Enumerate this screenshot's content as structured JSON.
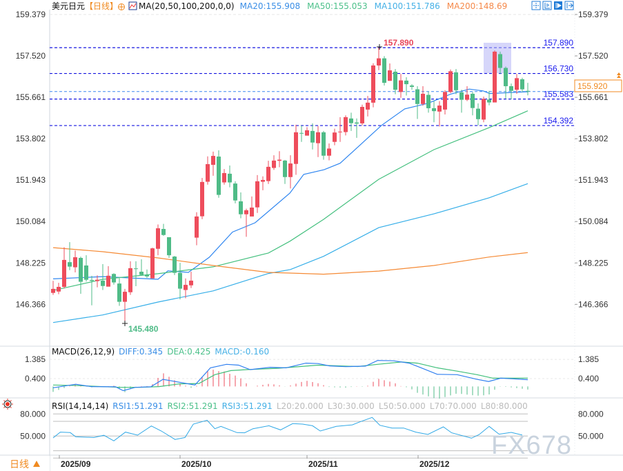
{
  "header": {
    "symbol": "美元日元",
    "period": "【日线】",
    "ma_params": "MA(20,50,100,200,0,0)",
    "ma20": "MA20:155.908",
    "ma50": "MA50:155.053",
    "ma100": "MA100:151.786",
    "ma200": "MA200:148.69",
    "toolbar_icons": [
      "crosshair-icon",
      "fit-range-icon",
      "play-icon",
      "exit-icon"
    ]
  },
  "colors": {
    "up": "#ee4d5c",
    "down": "#4fbb87",
    "ma20": "#2f86f0",
    "ma50": "#45c07f",
    "ma100": "#35aee8",
    "ma200": "#f58a35",
    "level_line": "#1515e0",
    "current_price": "#f08a20"
  },
  "price_axis": {
    "ticks": [
      "159.379",
      "157.520",
      "155.661",
      "153.802",
      "151.943",
      "150.084",
      "148.225",
      "146.366"
    ]
  },
  "levels": [
    {
      "value": "157.890"
    },
    {
      "value": "156.730"
    },
    {
      "value": "155.583"
    },
    {
      "value": "154.392"
    }
  ],
  "current_price": "155.920",
  "high_marker": "157.890",
  "low_marker": "145.480",
  "macd": {
    "title": "MACD(26,12,9)",
    "diff": "DIFF:0.345",
    "dea": "DEA:0.425",
    "macd": "MACD:-0.160",
    "ticks": [
      "1.385",
      "0.400"
    ]
  },
  "rsi": {
    "title": "RSI(14,14,14)",
    "rsi1": "RSI1:51.291",
    "rsi2": "RSI2:51.291",
    "rsi3": "RSI3:51.291",
    "l20": "L20:20.000",
    "l30": "L30:30.000",
    "l50": "L50:50.000",
    "l70": "L70:70.000",
    "l80": "L80:80.000",
    "ticks": [
      "80.000",
      "50.000"
    ]
  },
  "dates": [
    "2025/09",
    "2025/10",
    "2025/11",
    "2025/12"
  ],
  "period_button": "日线",
  "watermark": "FX678",
  "chart_data": {
    "type": "candlestick",
    "ohlc_order": [
      "open",
      "high",
      "low",
      "close"
    ],
    "ylim": [
      145.2,
      159.379
    ],
    "candles": [
      [
        146.88,
        147.42,
        146.79,
        147.06
      ],
      [
        146.94,
        147.33,
        146.82,
        147.15
      ],
      [
        147.15,
        148.93,
        147.08,
        148.36
      ],
      [
        148.26,
        149.16,
        147.9,
        148.06
      ],
      [
        148.03,
        148.78,
        147.8,
        148.48
      ],
      [
        148.45,
        148.51,
        146.84,
        147.38
      ],
      [
        148.11,
        148.57,
        147.39,
        147.47
      ],
      [
        147.46,
        147.65,
        146.32,
        147.42
      ],
      [
        147.41,
        147.67,
        147.13,
        147.47
      ],
      [
        147.43,
        148.17,
        147.01,
        147.19
      ],
      [
        147.16,
        148.08,
        147.16,
        147.65
      ],
      [
        147.73,
        147.76,
        147.25,
        147.35
      ],
      [
        147.3,
        147.54,
        146.3,
        146.48
      ],
      [
        146.48,
        147.06,
        145.48,
        146.93
      ],
      [
        146.91,
        148.3,
        146.79,
        147.99
      ],
      [
        147.98,
        148.3,
        147.18,
        147.96
      ],
      [
        147.83,
        148.39,
        147.65,
        147.69
      ],
      [
        147.68,
        147.93,
        147.55,
        147.62
      ],
      [
        147.53,
        148.91,
        147.53,
        148.88
      ],
      [
        148.86,
        149.95,
        148.57,
        149.78
      ],
      [
        149.75,
        149.98,
        149.44,
        149.48
      ],
      [
        149.38,
        149.38,
        148.45,
        148.57
      ],
      [
        148.51,
        148.54,
        147.68,
        147.78
      ],
      [
        147.78,
        148.23,
        146.59,
        147.07
      ],
      [
        147.01,
        147.53,
        146.64,
        147.24
      ],
      [
        147.22,
        147.83,
        147.1,
        147.43
      ],
      [
        149.36,
        150.5,
        149.02,
        150.31
      ],
      [
        150.32,
        152.04,
        150.19,
        151.86
      ],
      [
        151.87,
        153.01,
        151.74,
        152.66
      ],
      [
        152.63,
        153.22,
        152.14,
        153.03
      ],
      [
        153.0,
        153.28,
        151.15,
        151.28
      ],
      [
        151.84,
        152.44,
        151.74,
        152.26
      ],
      [
        152.23,
        152.6,
        151.62,
        151.84
      ],
      [
        151.79,
        151.89,
        150.9,
        151.03
      ],
      [
        150.99,
        151.39,
        150.23,
        150.41
      ],
      [
        150.41,
        150.66,
        149.4,
        150.59
      ],
      [
        150.31,
        151.21,
        150.31,
        150.71
      ],
      [
        150.72,
        152.17,
        150.47,
        151.89
      ],
      [
        151.87,
        152.11,
        151.49,
        151.95
      ],
      [
        151.9,
        152.81,
        151.77,
        152.54
      ],
      [
        152.49,
        153.06,
        152.4,
        152.82
      ],
      [
        152.81,
        153.24,
        152.52,
        152.86
      ],
      [
        152.82,
        152.85,
        151.77,
        152.08
      ],
      [
        152.08,
        153.06,
        151.57,
        152.69
      ],
      [
        152.67,
        154.43,
        152.18,
        154.09
      ],
      [
        154.06,
        154.39,
        153.66,
        154.04
      ],
      [
        153.94,
        154.32,
        153.94,
        154.18
      ],
      [
        154.15,
        154.49,
        153.32,
        153.63
      ],
      [
        153.6,
        154.37,
        152.98,
        154.09
      ],
      [
        154.09,
        154.15,
        152.86,
        153.04
      ],
      [
        153.04,
        153.59,
        152.83,
        153.36
      ],
      [
        153.66,
        154.25,
        153.51,
        154.08
      ],
      [
        154.1,
        154.77,
        153.66,
        154.12
      ],
      [
        154.1,
        154.85,
        153.95,
        154.77
      ],
      [
        154.71,
        154.97,
        154.15,
        154.5
      ],
      [
        154.53,
        154.71,
        153.84,
        154.48
      ],
      [
        154.49,
        155.33,
        154.4,
        155.23
      ],
      [
        155.11,
        155.72,
        154.8,
        155.42
      ],
      [
        155.42,
        157.19,
        155.21,
        157.09
      ],
      [
        157.09,
        157.89,
        156.88,
        157.41
      ],
      [
        157.41,
        157.51,
        156.19,
        156.31
      ],
      [
        156.4,
        157.18,
        156.4,
        156.87
      ],
      [
        156.81,
        156.93,
        155.8,
        156.0
      ],
      [
        155.9,
        156.71,
        155.64,
        156.42
      ],
      [
        156.41,
        156.56,
        155.74,
        156.25
      ],
      [
        156.19,
        156.25,
        156.0,
        156.13
      ],
      [
        156.02,
        156.16,
        154.69,
        155.36
      ],
      [
        155.36,
        156.16,
        155.28,
        155.82
      ],
      [
        155.77,
        155.92,
        154.97,
        155.17
      ],
      [
        155.17,
        155.49,
        154.54,
        155.04
      ],
      [
        155.02,
        155.49,
        154.35,
        155.29
      ],
      [
        155.11,
        155.98,
        154.89,
        155.9
      ],
      [
        155.9,
        156.91,
        155.85,
        156.83
      ],
      [
        156.78,
        156.93,
        155.8,
        155.98
      ],
      [
        155.88,
        156.0,
        154.97,
        155.55
      ],
      [
        155.55,
        156.16,
        155.49,
        155.78
      ],
      [
        155.82,
        155.9,
        154.85,
        155.18
      ],
      [
        155.15,
        155.39,
        154.4,
        154.68
      ],
      [
        154.66,
        155.69,
        154.54,
        155.59
      ],
      [
        155.56,
        155.95,
        155.3,
        155.43
      ],
      [
        155.43,
        157.76,
        155.43,
        157.71
      ],
      [
        157.6,
        157.71,
        156.71,
        156.98
      ],
      [
        156.98,
        157.04,
        155.59,
        156.16
      ],
      [
        156.16,
        156.28,
        155.57,
        155.95
      ],
      [
        156.0,
        156.71,
        155.82,
        156.52
      ],
      [
        156.47,
        156.54,
        155.9,
        156.02
      ],
      [
        155.95,
        156.31,
        155.75,
        155.92
      ]
    ],
    "moving_averages": {
      "MA20": [
        [
          1,
          147.51
        ],
        [
          10,
          147.61
        ],
        [
          20,
          147.49
        ],
        [
          21.8,
          147.87
        ],
        [
          25.5,
          147.8
        ],
        [
          29.3,
          148.48
        ],
        [
          33.5,
          149.61
        ],
        [
          37.6,
          150.03
        ],
        [
          43.9,
          151.36
        ],
        [
          46.4,
          152.2
        ],
        [
          50.1,
          152.41
        ],
        [
          53,
          152.7
        ],
        [
          57.6,
          153.74
        ],
        [
          60.5,
          154.4
        ],
        [
          64.7,
          155.14
        ],
        [
          68.9,
          155.39
        ],
        [
          73,
          155.8
        ],
        [
          76.4,
          156.03
        ],
        [
          78.9,
          155.95
        ],
        [
          80.1,
          155.83
        ],
        [
          87,
          155.908
        ]
      ],
      "MA50": [
        [
          1,
          146.99
        ],
        [
          10,
          147.49
        ],
        [
          20,
          147.74
        ],
        [
          30,
          148.05
        ],
        [
          40,
          148.67
        ],
        [
          43.9,
          149.2
        ],
        [
          50,
          150.18
        ],
        [
          60,
          151.98
        ],
        [
          70,
          153.31
        ],
        [
          80,
          154.3
        ],
        [
          87,
          155.053
        ]
      ],
      "MA100": [
        [
          1,
          145.55
        ],
        [
          10,
          145.89
        ],
        [
          20,
          146.47
        ],
        [
          30,
          146.97
        ],
        [
          40,
          147.75
        ],
        [
          44,
          147.93
        ],
        [
          50,
          148.52
        ],
        [
          60,
          149.81
        ],
        [
          70,
          150.43
        ],
        [
          80,
          151.15
        ],
        [
          87,
          151.786
        ]
      ],
      "MA200": [
        [
          1,
          148.91
        ],
        [
          10,
          148.73
        ],
        [
          20,
          148.45
        ],
        [
          30,
          148.11
        ],
        [
          40,
          147.8
        ],
        [
          44,
          147.77
        ],
        [
          50,
          147.72
        ],
        [
          60,
          147.86
        ],
        [
          70,
          148.11
        ],
        [
          80,
          148.49
        ],
        [
          87,
          148.69
        ]
      ]
    },
    "macd_lines": {
      "DIFF": [
        [
          1,
          -0.07
        ],
        [
          5.1,
          0.11
        ],
        [
          7.9,
          -0.01
        ],
        [
          12.3,
          -0.02
        ],
        [
          13.7,
          -0.22
        ],
        [
          15.9,
          -0.05
        ],
        [
          18.7,
          -0.02
        ],
        [
          20.9,
          0.36
        ],
        [
          23.1,
          0.25
        ],
        [
          26.7,
          0.07
        ],
        [
          29.5,
          0.95
        ],
        [
          32.4,
          1.13
        ],
        [
          34.6,
          1.09
        ],
        [
          36.7,
          0.86
        ],
        [
          40.3,
          0.98
        ],
        [
          43.2,
          0.95
        ],
        [
          46.8,
          1.19
        ],
        [
          49,
          1.17
        ],
        [
          51.1,
          1.05
        ],
        [
          54,
          1.01
        ],
        [
          57.6,
          1.04
        ],
        [
          59.8,
          1.33
        ],
        [
          62.7,
          1.31
        ],
        [
          65.5,
          1.19
        ],
        [
          67.7,
          0.95
        ],
        [
          70.6,
          0.62
        ],
        [
          74.2,
          0.6
        ],
        [
          77.8,
          0.36
        ],
        [
          79.9,
          0.25
        ],
        [
          82.1,
          0.42
        ],
        [
          84.3,
          0.39
        ],
        [
          87,
          0.345
        ]
      ],
      "DEA": [
        [
          1,
          0.07
        ],
        [
          5.9,
          0.04
        ],
        [
          13.1,
          -0.05
        ],
        [
          16.7,
          -0.05
        ],
        [
          20.2,
          -0.01
        ],
        [
          23.9,
          0.13
        ],
        [
          27.4,
          0.15
        ],
        [
          30.3,
          0.6
        ],
        [
          33.2,
          0.81
        ],
        [
          36.1,
          0.86
        ],
        [
          41.8,
          0.93
        ],
        [
          49,
          1.09
        ],
        [
          56.2,
          1.02
        ],
        [
          59.8,
          1.13
        ],
        [
          64.1,
          1.25
        ],
        [
          67,
          1.19
        ],
        [
          70.6,
          0.95
        ],
        [
          74.2,
          0.78
        ],
        [
          77.8,
          0.6
        ],
        [
          80.7,
          0.42
        ],
        [
          84.3,
          0.42
        ],
        [
          87,
          0.425
        ]
      ]
    },
    "rsi_line": [
      [
        1,
        47.5
      ],
      [
        2.3,
        55.3
      ],
      [
        4.1,
        54.7
      ],
      [
        5.1,
        49
      ],
      [
        8.4,
        48
      ],
      [
        10.2,
        51
      ],
      [
        12,
        43.4
      ],
      [
        14.1,
        55.3
      ],
      [
        16.3,
        51.2
      ],
      [
        18.8,
        63.7
      ],
      [
        20.6,
        56.8
      ],
      [
        23.1,
        45.3
      ],
      [
        24.9,
        48
      ],
      [
        26.4,
        66.2
      ],
      [
        28.9,
        71.5
      ],
      [
        30.3,
        59.9
      ],
      [
        31.4,
        63.1
      ],
      [
        34.3,
        54.7
      ],
      [
        35.7,
        54.4
      ],
      [
        37.2,
        59.9
      ],
      [
        40.1,
        64
      ],
      [
        42.2,
        58.3
      ],
      [
        44.4,
        66.9
      ],
      [
        46.2,
        66.2
      ],
      [
        48,
        64
      ],
      [
        49.4,
        56.8
      ],
      [
        52.3,
        63.1
      ],
      [
        55.2,
        65.2
      ],
      [
        56.6,
        69.3
      ],
      [
        58.8,
        75.3
      ],
      [
        60.2,
        64.6
      ],
      [
        62.4,
        60.9
      ],
      [
        64.5,
        60.9
      ],
      [
        66.7,
        55.3
      ],
      [
        68.9,
        52.2
      ],
      [
        71.7,
        62.5
      ],
      [
        73.2,
        54.4
      ],
      [
        76.8,
        47.1
      ],
      [
        78.2,
        52.1
      ],
      [
        80,
        63.1
      ],
      [
        81.8,
        52.5
      ],
      [
        84,
        55
      ],
      [
        86,
        51.3
      ]
    ],
    "rsi_levels": [
      20,
      30,
      50,
      70,
      80
    ],
    "macd_ylim_ticks": [
      1.385,
      0.4
    ],
    "rsi_ticks": [
      80,
      50
    ]
  }
}
